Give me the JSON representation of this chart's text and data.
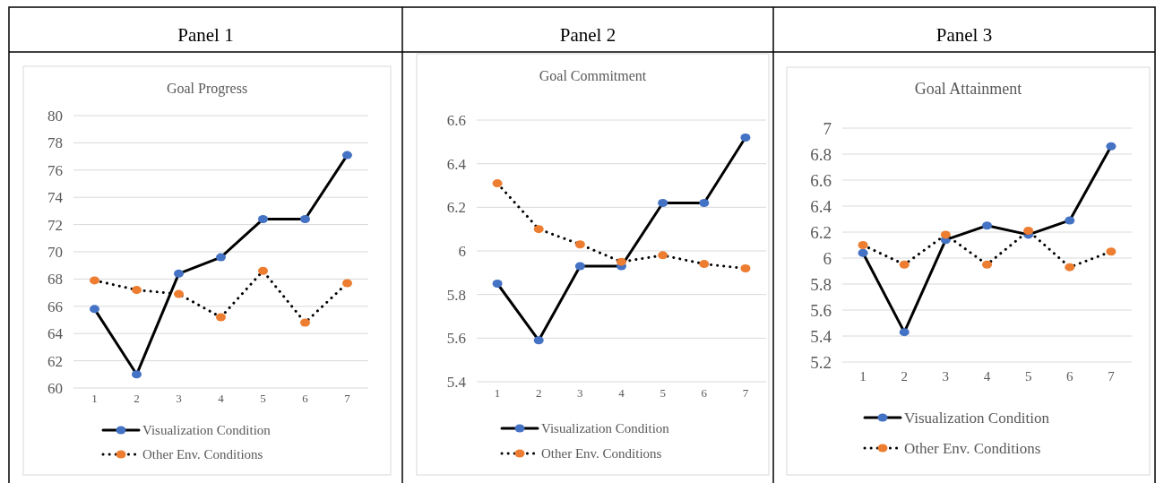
{
  "chart_data": [
    {
      "type": "line",
      "title": "Panel 1",
      "subtitle": "Goal Progress",
      "categories": [
        "1",
        "2",
        "3",
        "4",
        "5",
        "6",
        "7"
      ],
      "ylim": [
        60,
        80
      ],
      "yticks": [
        60,
        62,
        64,
        66,
        68,
        70,
        72,
        74,
        76,
        78,
        80
      ],
      "grid": "y",
      "legend": "bottom",
      "marker": "circle",
      "series": [
        {
          "name": "Visualization Condition",
          "color": "#4472c4",
          "line_style": "solid",
          "values": [
            65.8,
            61.0,
            68.4,
            69.6,
            72.4,
            72.4,
            77.1
          ]
        },
        {
          "name": "Other Env. Conditions",
          "color": "#ed7d31",
          "line_style": "dotted",
          "values": [
            67.9,
            67.2,
            66.9,
            65.2,
            68.6,
            64.8,
            67.7
          ]
        }
      ]
    },
    {
      "type": "line",
      "title": "Panel 2",
      "subtitle": "Goal Commitment",
      "categories": [
        "1",
        "2",
        "3",
        "4",
        "5",
        "6",
        "7"
      ],
      "ylim": [
        5.4,
        6.6
      ],
      "yticks": [
        5.4,
        5.6,
        5.8,
        6,
        6.2,
        6.4,
        6.6
      ],
      "grid": "y",
      "legend": "bottom",
      "marker": "circle",
      "series": [
        {
          "name": "Visualization Condition",
          "color": "#4472c4",
          "line_style": "solid",
          "values": [
            5.85,
            5.59,
            5.93,
            5.93,
            6.22,
            6.22,
            6.52
          ]
        },
        {
          "name": "Other Env. Conditions",
          "color": "#ed7d31",
          "line_style": "dotted",
          "values": [
            6.31,
            6.1,
            6.03,
            5.95,
            5.98,
            5.94,
            5.92
          ]
        }
      ]
    },
    {
      "type": "line",
      "title": "Panel 3",
      "subtitle": "Goal Attainment",
      "categories": [
        "1",
        "2",
        "3",
        "4",
        "5",
        "6",
        "7"
      ],
      "ylim": [
        5.2,
        7
      ],
      "yticks": [
        5.2,
        5.4,
        5.6,
        5.8,
        6,
        6.2,
        6.4,
        6.6,
        6.8,
        7
      ],
      "grid": "y",
      "legend": "bottom",
      "marker": "circle",
      "series": [
        {
          "name": "Visualization Condition",
          "color": "#4472c4",
          "line_style": "solid",
          "values": [
            6.04,
            5.43,
            6.14,
            6.25,
            6.18,
            6.29,
            6.86
          ]
        },
        {
          "name": "Other Env. Conditions",
          "color": "#ed7d31",
          "line_style": "dotted",
          "values": [
            6.1,
            5.95,
            6.18,
            5.95,
            6.21,
            5.93,
            6.05
          ]
        }
      ]
    }
  ]
}
